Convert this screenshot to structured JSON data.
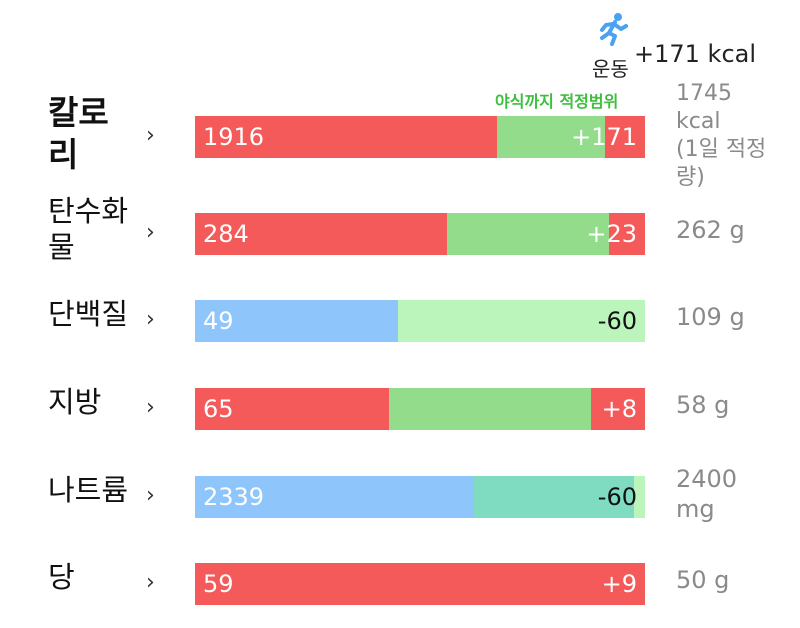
{
  "exercise": {
    "label": "운동",
    "value": "+171 kcal",
    "icon": "running-person-icon",
    "icon_color": "#4aa3f0"
  },
  "range_label": "야식까지 적정범위",
  "nutrients": [
    {
      "name": "칼로리",
      "name_lines": [
        "칼로",
        "리"
      ],
      "value": "1916",
      "diff": "+171",
      "target_lines": [
        "1745",
        "kcal",
        "(1일 적정",
        "량)"
      ],
      "intake_fraction": 0.67,
      "range_start": 0.67,
      "range_end": 0.91,
      "status": "over"
    },
    {
      "name": "탄수화물",
      "name_lines": [
        "탄수화",
        "물"
      ],
      "value": "284",
      "diff": "+23",
      "target_lines": [
        "262 g"
      ],
      "intake_fraction": 0.56,
      "range_start": 0.56,
      "range_end": 0.92,
      "status": "over"
    },
    {
      "name": "단백질",
      "name_lines": [
        "단백질"
      ],
      "value": "49",
      "diff": "-60",
      "target_lines": [
        "109 g"
      ],
      "intake_fraction": 0.45,
      "range_start": 0.45,
      "range_end": 1.0,
      "status": "under"
    },
    {
      "name": "지방",
      "name_lines": [
        "지방"
      ],
      "value": "65",
      "diff": "+8",
      "target_lines": [
        "58 g"
      ],
      "intake_fraction": 0.43,
      "range_start": 0.43,
      "range_end": 0.88,
      "status": "over"
    },
    {
      "name": "나트륨",
      "name_lines": [
        "나트륨"
      ],
      "value": "2339",
      "diff": "-60",
      "target_lines": [
        "2400",
        "mg"
      ],
      "intake_fraction": 0.62,
      "range_start": 0.62,
      "range_end": 0.975,
      "status": "under"
    },
    {
      "name": "당",
      "name_lines": [
        "당"
      ],
      "value": "59",
      "diff": "+9",
      "target_lines": [
        "50 g"
      ],
      "intake_fraction": 1.0,
      "range_start": 1.0,
      "range_end": 1.0,
      "status": "over"
    }
  ],
  "colors": {
    "over": "#f55a5a",
    "under": "#8ec5fb",
    "range": "#93dc8c",
    "range_light": "#bcf5bb",
    "range_overlap": "#7fdcc0",
    "diff_dark": "#111111",
    "diff_light": "#ffffff"
  }
}
